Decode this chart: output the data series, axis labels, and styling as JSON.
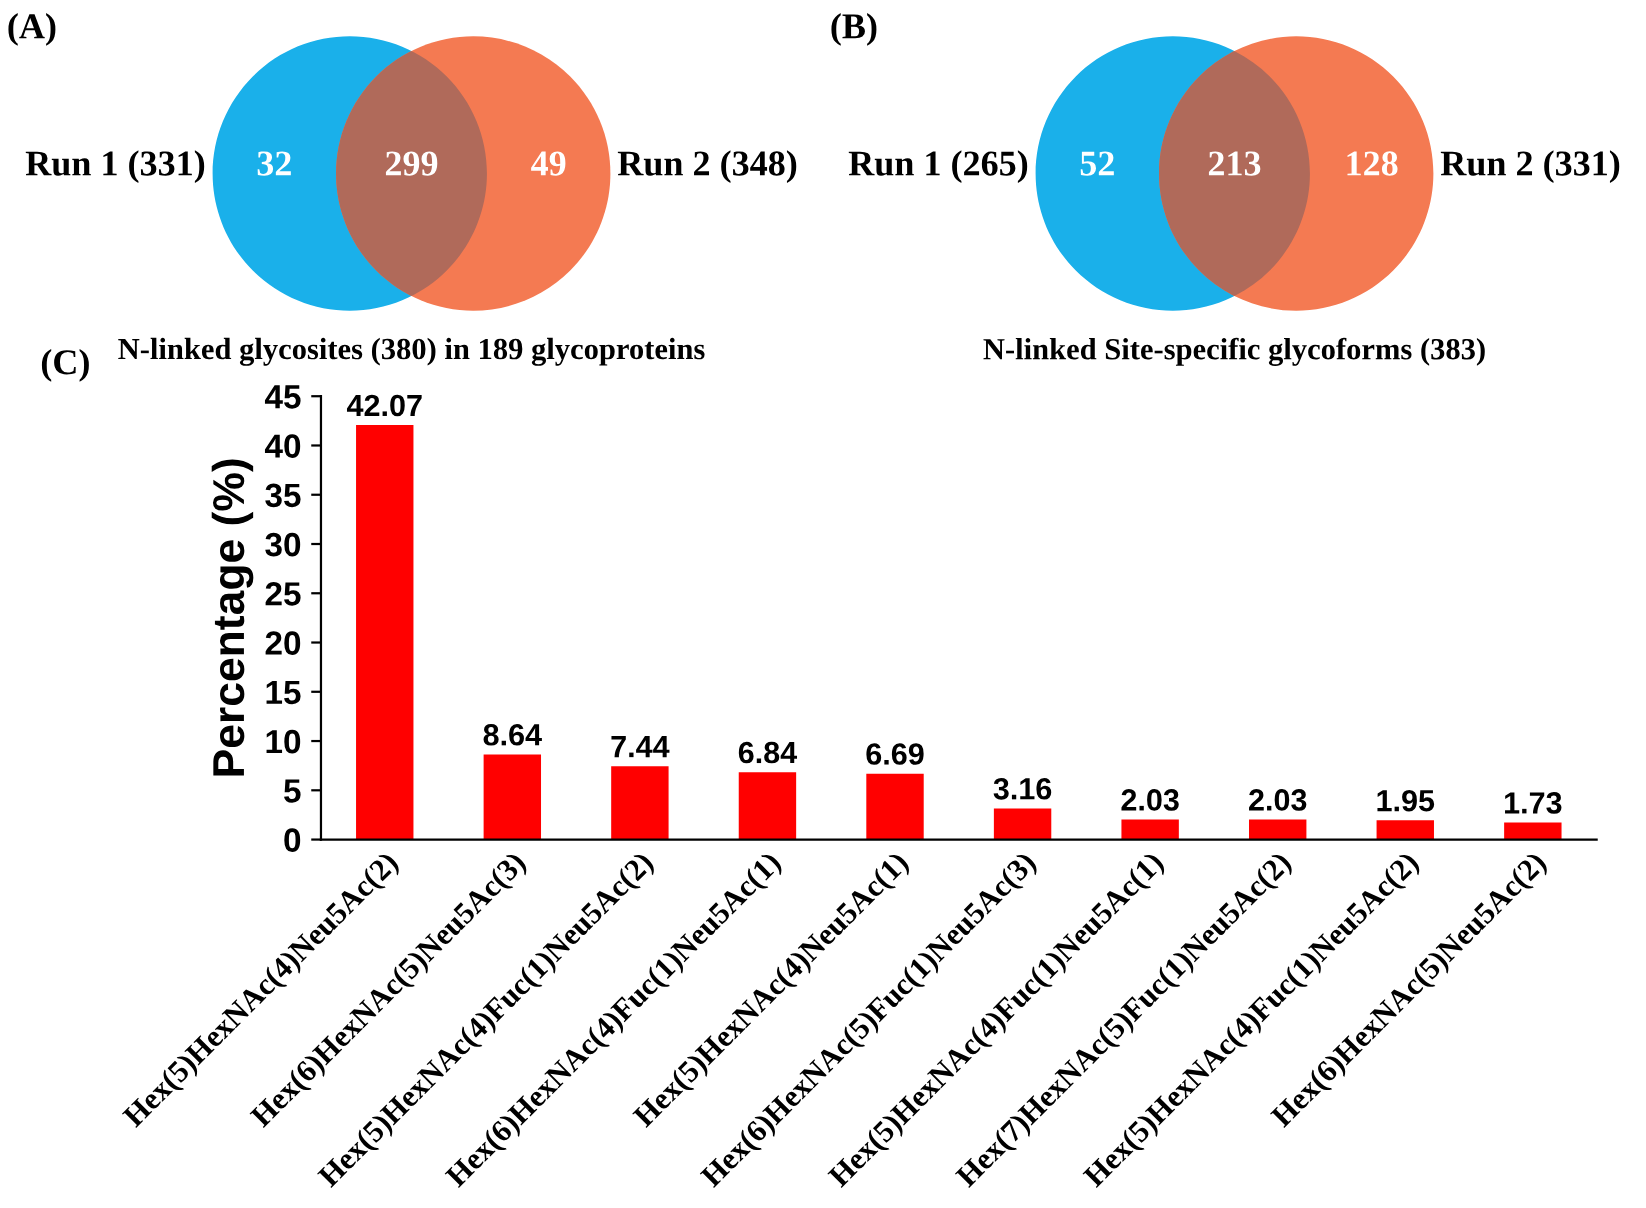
{
  "chart_data": [
    {
      "type": "other",
      "title": "(A)",
      "xlabel": "N-linked glycosites (380) in 189 glycoproteins",
      "data_labels": true,
      "categories": [
        null,
        null,
        null
      ],
      "values": [
        32,
        299,
        49
      ],
      "colors": [
        "#1ab0ea",
        "#b06a5a",
        "#f47a52"
      ],
      "annotations": [
        "Run 1 (331)",
        "Run 2 (348)"
      ]
    },
    {
      "type": "other",
      "title": "(B)",
      "xlabel": "N-linked Site-specific glycoforms (383)",
      "data_labels": true,
      "categories": [
        null,
        null,
        null
      ],
      "values": [
        52,
        213,
        128
      ],
      "colors": [
        "#1ab0ea",
        "#b06a5a",
        "#f47a52"
      ],
      "annotations": [
        "Run 1 (265)",
        "Run 2 (331)"
      ]
    },
    {
      "type": "bar",
      "title": "(C)",
      "ylabel": "Percentage (%)",
      "color": "#ff0000",
      "data_labels": true,
      "grid": false,
      "categories": [
        "Hex(5)HexNAc(4)Neu5Ac(2)",
        "Hex(6)HexNAc(5)Neu5Ac(3)",
        "Hex(5)HexNAc(4)Fuc(1)Neu5Ac(2)",
        "Hex(6)HexNAc(4)Fuc(1)Neu5Ac(1)",
        "Hex(5)HexNAc(4)Neu5Ac(1)",
        "Hex(6)HexNAc(5)Fuc(1)Neu5Ac(3)",
        "Hex(5)HexNAc(4)Fuc(1)Neu5Ac(1)",
        "Hex(7)HexNAc(5)Fuc(1)Neu5Ac(2)",
        "Hex(5)HexNAc(4)Fuc(1)Neu5Ac(2)",
        "Hex(6)HexNAc(5)Neu5Ac(2)"
      ],
      "values": [
        42.07,
        8.64,
        7.44,
        6.84,
        6.69,
        3.16,
        2.03,
        2.03,
        1.95,
        1.73
      ],
      "ylim": [
        0,
        45
      ],
      "yticks": [
        0,
        5,
        10,
        15,
        20,
        25,
        30,
        35,
        40,
        45
      ]
    }
  ]
}
